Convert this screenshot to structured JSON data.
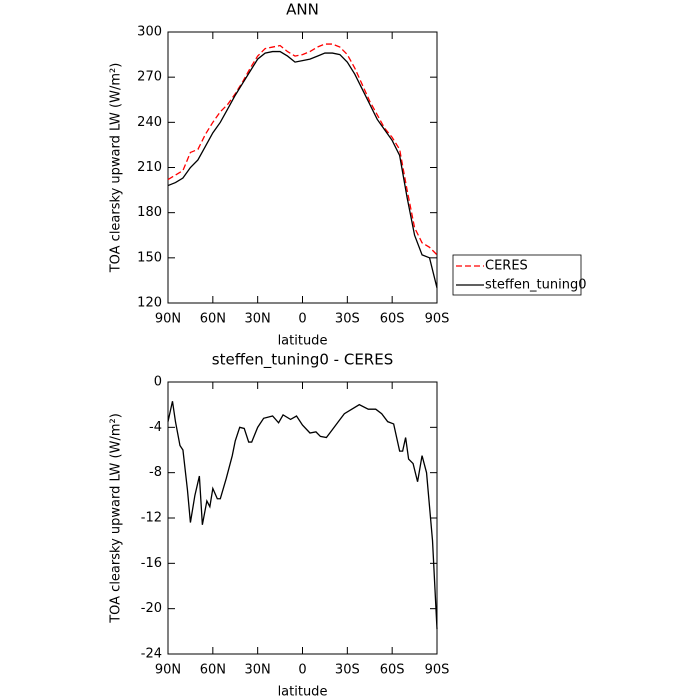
{
  "chart_data": [
    {
      "type": "line",
      "title": "ANN",
      "xlabel": "latitude",
      "ylabel": "TOA clearsky upward LW (W/m²)",
      "x": [
        90,
        85,
        80,
        75,
        70,
        65,
        60,
        55,
        50,
        45,
        40,
        35,
        30,
        25,
        20,
        15,
        10,
        5,
        0,
        -5,
        -10,
        -15,
        -20,
        -25,
        -30,
        -35,
        -40,
        -45,
        -50,
        -55,
        -60,
        -65,
        -70,
        -75,
        -80,
        -85,
        -90
      ],
      "series": [
        {
          "name": "CERES",
          "color": "#ff0000",
          "linestyle": "dashed",
          "values": [
            202,
            205,
            208,
            220,
            222,
            232,
            240,
            247,
            252,
            259,
            267,
            276,
            284,
            289,
            290,
            291,
            287,
            284,
            285,
            287,
            290,
            292,
            292,
            290,
            285,
            276,
            265,
            254,
            245,
            236,
            230,
            222,
            195,
            170,
            160,
            157,
            152
          ]
        },
        {
          "name": "steffen_tuning0",
          "color": "#000000",
          "linestyle": "solid",
          "values": [
            198,
            200,
            203,
            210,
            215,
            224,
            233,
            240,
            249,
            258,
            266,
            274,
            282,
            286,
            287,
            287,
            284,
            280,
            281,
            282,
            284,
            286,
            286,
            285,
            280,
            272,
            262,
            252,
            242,
            235,
            228,
            218,
            190,
            165,
            152,
            150,
            130
          ]
        }
      ],
      "xlim": [
        90,
        -90
      ],
      "xticks": [
        {
          "value": 90,
          "label": "90N"
        },
        {
          "value": 60,
          "label": "60N"
        },
        {
          "value": 30,
          "label": "30N"
        },
        0,
        {
          "value": -30,
          "label": "30S"
        },
        {
          "value": -60,
          "label": "60S"
        },
        {
          "value": -90,
          "label": "90S"
        }
      ],
      "ylim": [
        120,
        300
      ],
      "yticks": [
        120,
        150,
        180,
        210,
        240,
        270,
        300
      ],
      "legend": "right"
    },
    {
      "type": "line",
      "title": "steffen_tuning0 - CERES",
      "xlabel": "latitude",
      "ylabel": "TOA clearsky upward LW (W/m²)",
      "x": [
        90,
        87,
        85,
        82,
        80,
        77,
        75,
        72,
        69,
        67,
        64,
        62,
        60,
        57,
        55,
        51,
        47,
        45,
        42,
        39,
        36,
        34,
        30,
        26,
        20,
        16,
        13,
        8,
        4,
        0,
        -5,
        -9,
        -12,
        -16,
        -20,
        -24,
        -28,
        -33,
        -38,
        -44,
        -49,
        -53,
        -57,
        -61,
        -65,
        -67,
        -69,
        -71,
        -74,
        -77,
        -80,
        -83,
        -87,
        -90
      ],
      "values": [
        -3.5,
        -1.7,
        -3.5,
        -5.6,
        -6.0,
        -9.5,
        -12.4,
        -10.0,
        -8.3,
        -12.6,
        -10.5,
        -11.0,
        -9.4,
        -10.3,
        -10.3,
        -8.5,
        -6.5,
        -5.2,
        -4.0,
        -4.1,
        -5.3,
        -5.3,
        -4.0,
        -3.2,
        -3.0,
        -3.6,
        -2.9,
        -3.3,
        -3.0,
        -3.8,
        -4.5,
        -4.4,
        -4.8,
        -4.9,
        -4.2,
        -3.5,
        -2.8,
        -2.4,
        -2.0,
        -2.4,
        -2.4,
        -2.8,
        -3.5,
        -3.7,
        -6.1,
        -6.1,
        -4.9,
        -6.8,
        -7.2,
        -8.8,
        -6.5,
        -8.0,
        -14.0,
        -21.8
      ],
      "color": "#000000",
      "xlim": [
        90,
        -90
      ],
      "xticks": [
        {
          "value": 90,
          "label": "90N"
        },
        {
          "value": 60,
          "label": "60N"
        },
        {
          "value": 30,
          "label": "30N"
        },
        0,
        {
          "value": -30,
          "label": "30S"
        },
        {
          "value": -60,
          "label": "60S"
        },
        {
          "value": -90,
          "label": "90S"
        }
      ],
      "ylim": [
        -24,
        0
      ],
      "yticks": [
        -24,
        -20,
        -16,
        -12,
        -8,
        -4,
        0
      ]
    }
  ]
}
